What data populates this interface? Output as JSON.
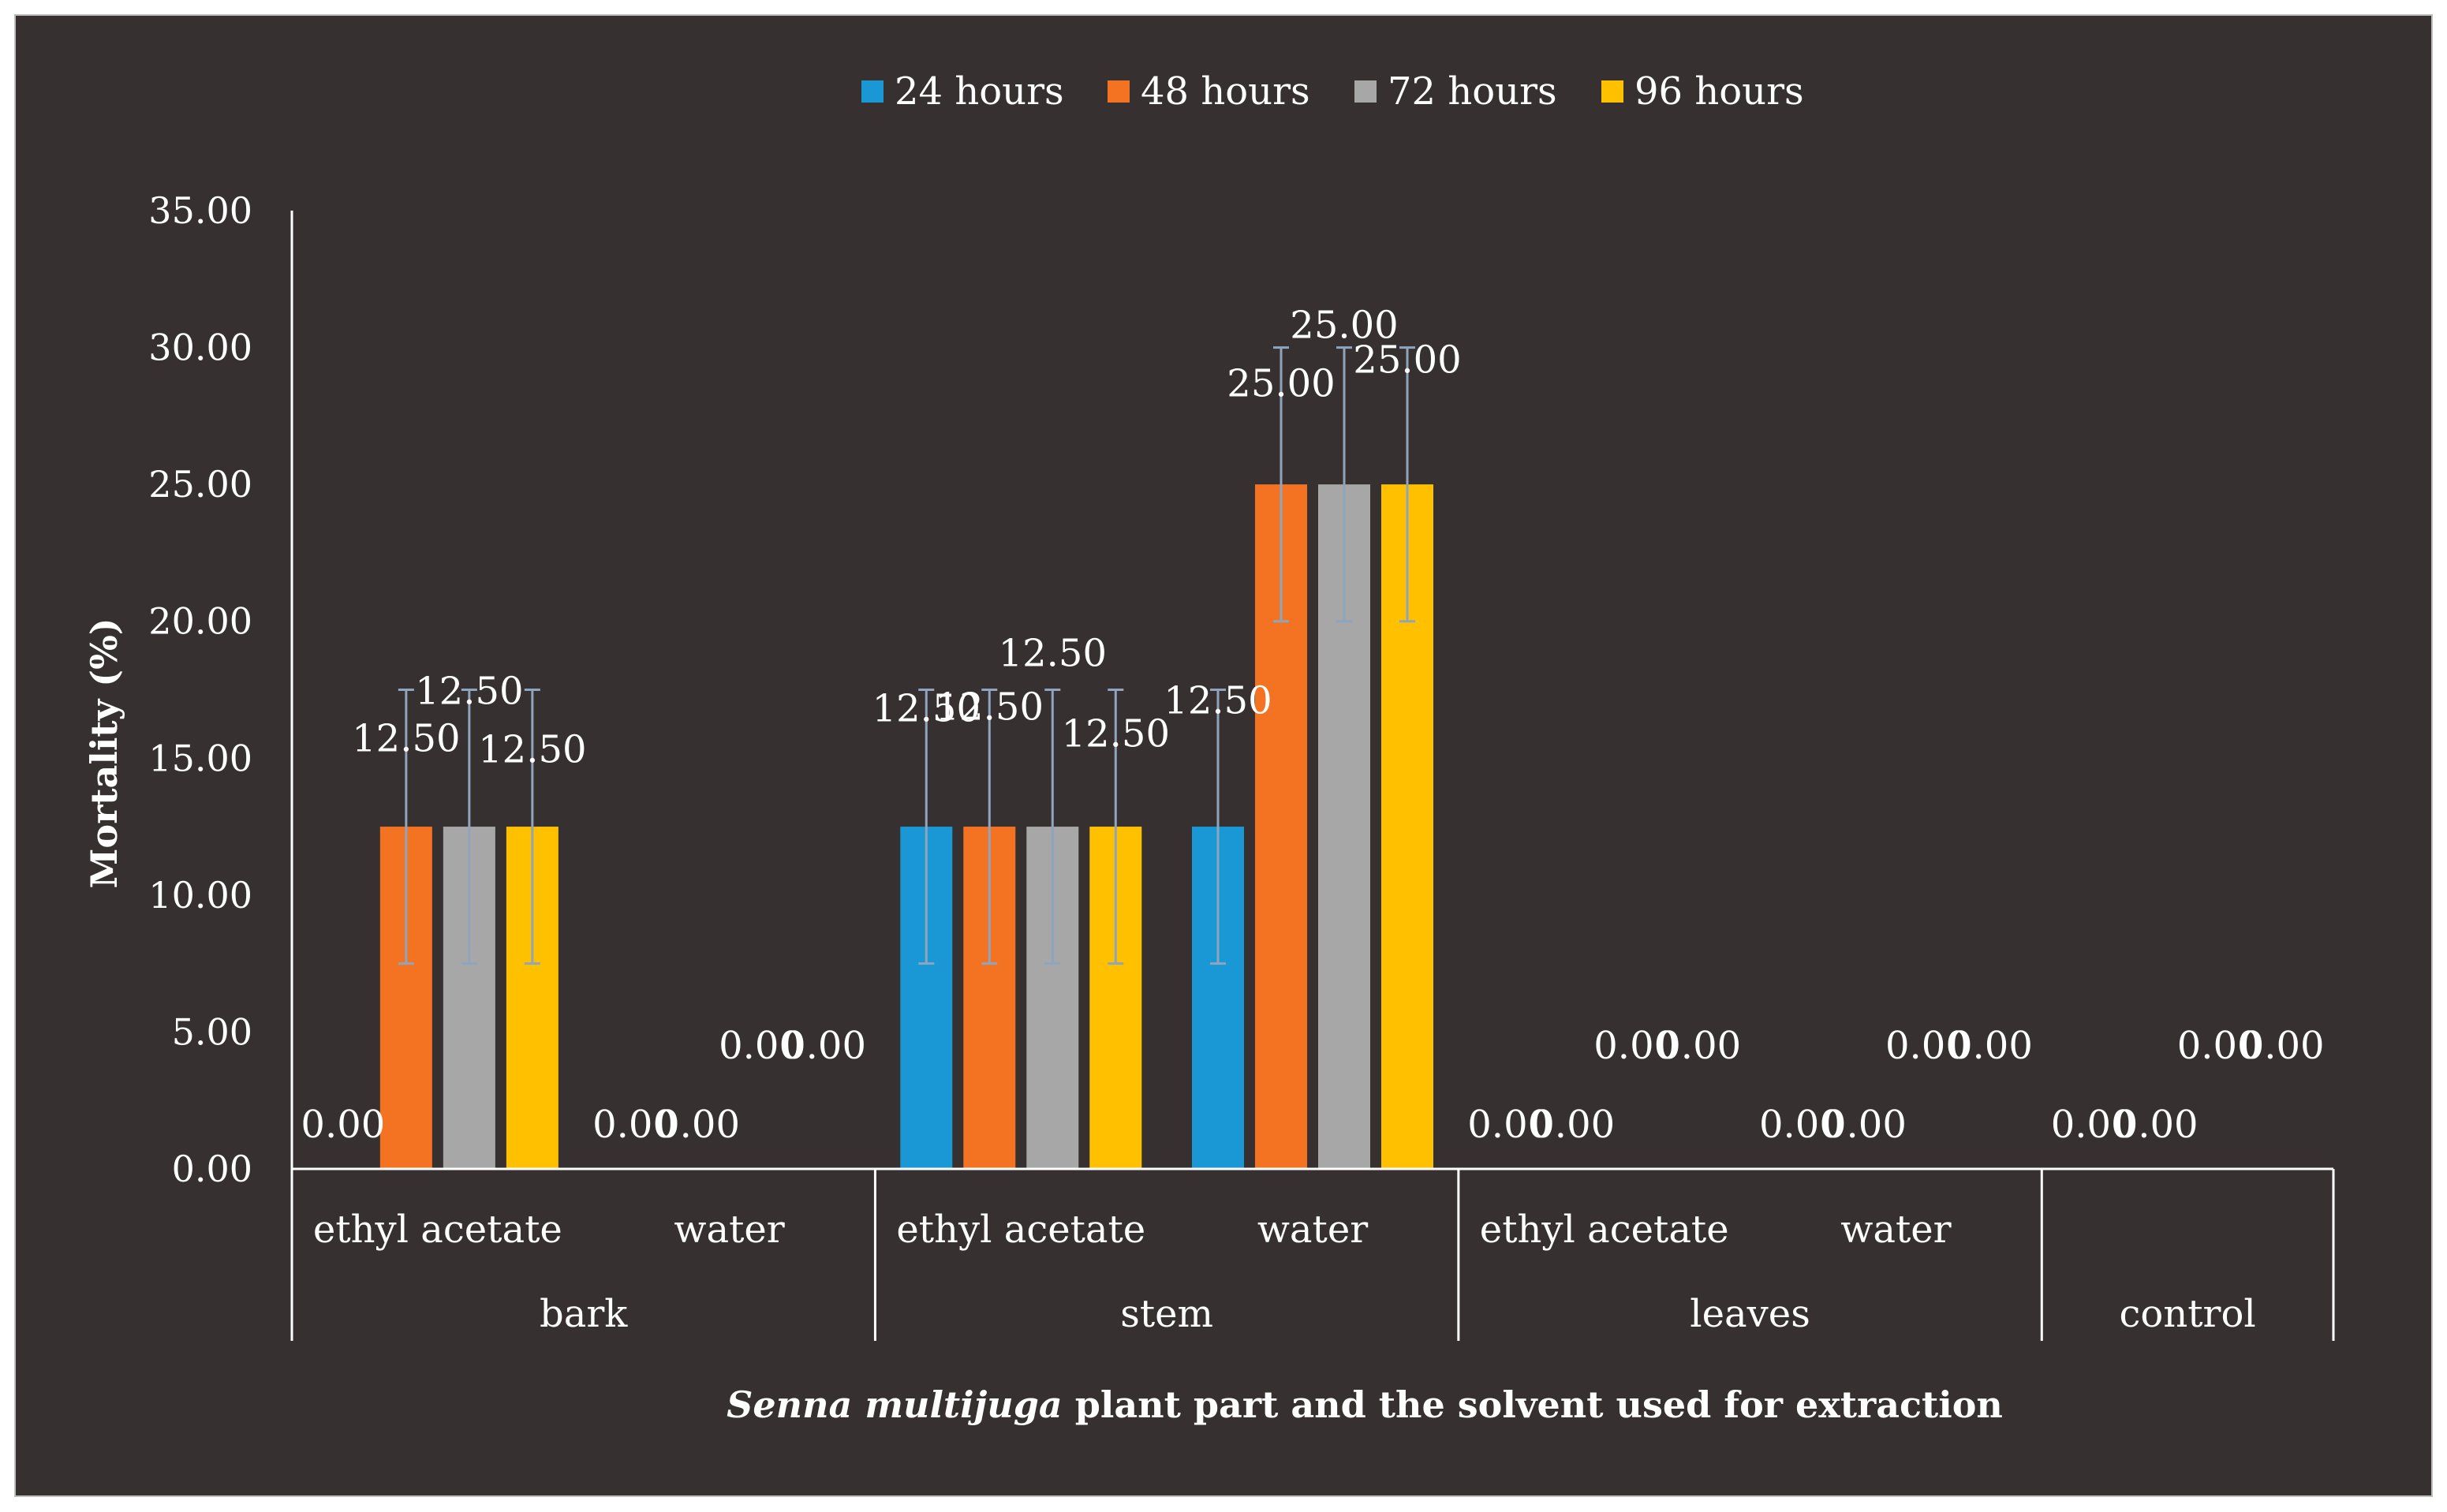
{
  "chart_data": {
    "type": "bar",
    "ylabel": "Mortality (%)",
    "xlabel_italic": "Senna multijuga",
    "xlabel_rest": " plant part and the solvent used for extraction",
    "ylim": [
      0,
      35
    ],
    "yticks": [
      "0.00",
      "5.00",
      "10.00",
      "15.00",
      "20.00",
      "25.00",
      "30.00",
      "35.00"
    ],
    "legend_position": "top",
    "groups": [
      {
        "label": "bark",
        "subcategories": [
          "ethyl acetate",
          "water"
        ]
      },
      {
        "label": "stem",
        "subcategories": [
          "ethyl acetate",
          "water"
        ]
      },
      {
        "label": "leaves",
        "subcategories": [
          "ethyl acetate",
          "water"
        ]
      },
      {
        "label": "control",
        "subcategories": [
          ""
        ]
      }
    ],
    "categories": [
      "bark / ethyl acetate",
      "bark / water",
      "stem / ethyl acetate",
      "stem / water",
      "leaves / ethyl acetate",
      "leaves / water",
      "control"
    ],
    "series": [
      {
        "name": "24 hours",
        "color": "#1a97d5",
        "values": [
          0,
          0,
          12.5,
          12.5,
          0,
          0,
          0
        ],
        "errors": [
          0,
          0,
          5,
          5,
          0,
          0,
          0
        ],
        "labels": [
          "0.00",
          "0.00",
          "12.50",
          "12.50",
          "0.00",
          "0.00",
          "0.00"
        ]
      },
      {
        "name": "48 hours",
        "color": "#f47323",
        "values": [
          12.5,
          0,
          12.5,
          25,
          0,
          0,
          0
        ],
        "errors": [
          5,
          0,
          5,
          5,
          0,
          0,
          0
        ],
        "labels": [
          "12.50",
          "0.00",
          "12.50",
          "25.00",
          "0.00",
          "0.00",
          "0.00"
        ]
      },
      {
        "name": "72 hours",
        "color": "#a7a7a7",
        "values": [
          12.5,
          0,
          12.5,
          25,
          0,
          0,
          0
        ],
        "errors": [
          5,
          0,
          5,
          5,
          0,
          0,
          0
        ],
        "labels": [
          "12.50",
          "0.00",
          "12.50",
          "25.00",
          "0.00",
          "0.00",
          "0.00"
        ]
      },
      {
        "name": "96 hours",
        "color": "#ffc000",
        "values": [
          12.5,
          0,
          12.5,
          25,
          0,
          0,
          0
        ],
        "errors": [
          5,
          0,
          5,
          5,
          0,
          0,
          0
        ],
        "labels": [
          "12.50",
          "0.00",
          "12.50",
          "25.00",
          "0.00",
          "0.00",
          "0.00"
        ]
      }
    ],
    "errorbar_color": "#8fa4bd"
  }
}
